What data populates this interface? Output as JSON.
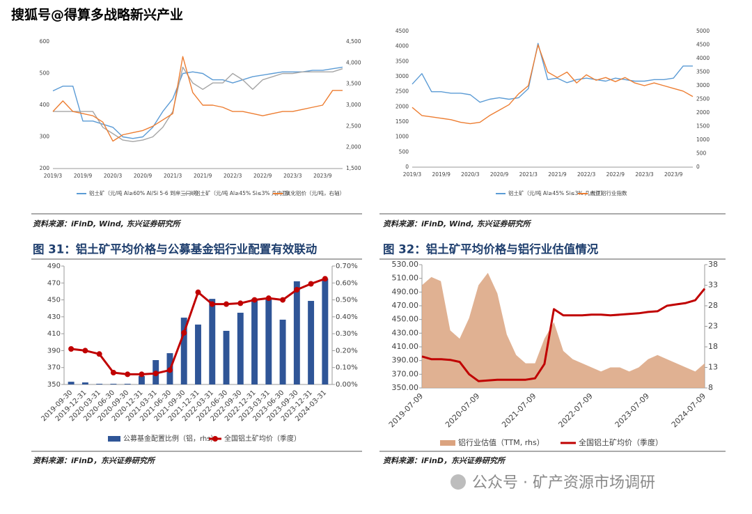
{
  "header": {
    "title": "搜狐号@得算多战略新兴产业"
  },
  "sources": [
    "资料来源：iFinD, Wind, 东兴证券研究所",
    "资料来源：iFinD, Wind, 东兴证券研究所",
    "资料来源：iFinD，东兴证券研究所",
    "资料来源：iFinD，东兴证券研究所"
  ],
  "watermark": "公众号 · 矿产资源市场调研",
  "chart_data": [
    {
      "type": "line",
      "categories": [
        "2019/3",
        null,
        null,
        "2019/9",
        null,
        null,
        "2020/3",
        null,
        null,
        "2020/9",
        null,
        null,
        "2021/3",
        null,
        null,
        "2021/9",
        null,
        null,
        "2022/3",
        null,
        null,
        "2022/9",
        null,
        null,
        "2023/3",
        null,
        null,
        "2023/9",
        null,
        null
      ],
      "ylim": [
        200,
        600
      ],
      "yticks": [
        200,
        300,
        400,
        500,
        600
      ],
      "y2lim": [
        1500,
        4500
      ],
      "y2ticks": [
        {
          "value": 1500,
          "label": "1,500"
        },
        {
          "value": 2000,
          "label": "2,000"
        },
        {
          "value": 2500,
          "label": "2,500"
        },
        {
          "value": 3000,
          "label": "3,000"
        },
        {
          "value": 3500,
          "label": "3,500"
        },
        {
          "value": 4000,
          "label": "4,000"
        },
        {
          "value": 4500,
          "label": "4,500"
        }
      ],
      "series": [
        {
          "name": "铝土矿（元/吨 Al≥60% Al/Si 5-6 到岸三门峡）",
          "color": "#5b9bd5",
          "type": "line",
          "values": [
            445,
            460,
            460,
            350,
            350,
            340,
            330,
            300,
            295,
            300,
            330,
            380,
            420,
            500,
            505,
            500,
            480,
            480,
            470,
            480,
            490,
            495,
            500,
            505,
            505,
            505,
            510,
            510,
            515,
            520
          ]
        },
        {
          "name": "铝土矿（元/吨 Al≥45% Si≤3% 几内亚）",
          "color": "#a5a5a5",
          "type": "line",
          "values": [
            380,
            380,
            380,
            380,
            380,
            330,
            310,
            290,
            285,
            290,
            300,
            330,
            380,
            520,
            470,
            450,
            470,
            470,
            500,
            480,
            450,
            480,
            490,
            500,
            500,
            505,
            505,
            505,
            505,
            515
          ]
        },
        {
          "name": "氧化铝价（元/吨，右轴）",
          "color": "#ed7d31",
          "type": "line",
          "axis": "y2",
          "values": [
            2850,
            3100,
            2850,
            2800,
            2750,
            2600,
            2150,
            2300,
            2350,
            2400,
            2500,
            2650,
            2800,
            4150,
            3300,
            3000,
            3000,
            2950,
            2850,
            2850,
            2800,
            2750,
            2800,
            2850,
            2850,
            2900,
            2950,
            3000,
            3350,
            3350
          ]
        }
      ]
    },
    {
      "type": "line",
      "categories": [
        "2019/3",
        null,
        null,
        "2019/9",
        null,
        null,
        "2020/3",
        null,
        null,
        "2020/9",
        null,
        null,
        "2021/3",
        null,
        null,
        "2021/9",
        null,
        null,
        "2022/3",
        null,
        null,
        "2022/9",
        null,
        null,
        "2023/3",
        null,
        null,
        "2023/9",
        null,
        null
      ],
      "ylim": [
        0,
        4500
      ],
      "yticks": [
        0,
        500,
        1000,
        1500,
        2000,
        2500,
        3000,
        3500,
        4000,
        4500
      ],
      "y2lim": [
        0,
        5000
      ],
      "y2ticks": [
        0,
        500,
        1000,
        1500,
        2000,
        2500,
        3000,
        3500,
        4000,
        4500,
        5000
      ],
      "series": [
        {
          "name": "铝土矿（元/吨 Al≥45% Si≤3% 几内亚）",
          "color": "#5b9bd5",
          "type": "line",
          "values": [
            2750,
            3100,
            2500,
            2500,
            2450,
            2450,
            2400,
            2150,
            2250,
            2300,
            2250,
            2300,
            2600,
            4100,
            2900,
            2950,
            2800,
            2900,
            2950,
            2900,
            2850,
            2950,
            2900,
            2850,
            2850,
            2900,
            2900,
            2950,
            3350,
            3350
          ]
        },
        {
          "name": "长江铝行业指数",
          "color": "#ed7d31",
          "type": "line",
          "axis": "y2",
          "values": [
            2200,
            1900,
            1850,
            1800,
            1750,
            1650,
            1600,
            1650,
            1900,
            2100,
            2300,
            2700,
            3000,
            4500,
            3500,
            3300,
            3500,
            3100,
            3400,
            3200,
            3300,
            3150,
            3300,
            3100,
            3000,
            3100,
            3000,
            2900,
            2800,
            2600
          ]
        }
      ]
    },
    {
      "type": "combo",
      "title": "图 31：铝土矿平均价格与公募基金铝行业配置有效联动",
      "categories": [
        "2019-09-30",
        "2019-12-31",
        "2020-03-31",
        "2020-06-30",
        "2020-09-30",
        "2020-12-31",
        "2021-03-31",
        "2021-06-30",
        "2021-09-30",
        "2021-12-31",
        "2022-03-31",
        "2022-06-30",
        "2022-09-30",
        "2022-12-31",
        "2023-03-31",
        "2023-06-30",
        "2023-09-30",
        "2023-12-31",
        "2024-03-31"
      ],
      "ylim": [
        350,
        490
      ],
      "yticks": [
        350,
        370,
        390,
        410,
        430,
        450,
        470,
        490
      ],
      "y2lim": [
        0,
        0.007
      ],
      "y2ticks": [
        {
          "value": 0,
          "label": "0.00%"
        },
        {
          "value": 0.001,
          "label": "0.10%"
        },
        {
          "value": 0.002,
          "label": "0.20%"
        },
        {
          "value": 0.003,
          "label": "0.30%"
        },
        {
          "value": 0.004,
          "label": "0.40%"
        },
        {
          "value": 0.005,
          "label": "0.50%"
        },
        {
          "value": 0.006,
          "label": "0.60%"
        },
        {
          "value": 0.007,
          "label": "0.70%"
        }
      ],
      "series": [
        {
          "name": "公募基金配置比例（铝，rhs）",
          "color": "#2f5597",
          "type": "bar",
          "axis": "y2",
          "values": [
            0.00016,
            0.00012,
            4e-05,
            4e-05,
            4e-05,
            0.0005,
            0.00144,
            0.00185,
            0.00395,
            0.00354,
            0.00506,
            0.00317,
            0.00424,
            0.00506,
            0.0051,
            0.00383,
            0.0061,
            0.00494,
            0.00626
          ]
        },
        {
          "name": "全国铝土矿均价（季度）",
          "color": "#c00000",
          "type": "line",
          "marker": true,
          "values": [
            392,
            390,
            386,
            364,
            362,
            362,
            363,
            367,
            411,
            459,
            445,
            445,
            446,
            450,
            452,
            450,
            462,
            469,
            475
          ]
        }
      ]
    },
    {
      "type": "combo",
      "title": "图 32：铝土矿平均价格与铝行业估值情况",
      "categories": [
        "2019-07-09",
        null,
        null,
        null,
        null,
        null,
        "2020-07-09",
        null,
        null,
        null,
        null,
        null,
        "2021-07-09",
        null,
        null,
        null,
        null,
        null,
        "2022-07-09",
        null,
        null,
        null,
        null,
        null,
        "2023-07-09",
        null,
        null,
        null,
        null,
        null,
        "2024-07-09"
      ],
      "ylim": [
        350,
        530
      ],
      "yticks": [
        {
          "value": 350,
          "label": "350.00"
        },
        {
          "value": 370,
          "label": "370.00"
        },
        {
          "value": 390,
          "label": "390.00"
        },
        {
          "value": 410,
          "label": "410.00"
        },
        {
          "value": 430,
          "label": "430.00"
        },
        {
          "value": 450,
          "label": "450.00"
        },
        {
          "value": 470,
          "label": "470.00"
        },
        {
          "value": 490,
          "label": "490.00"
        },
        {
          "value": 510,
          "label": "510.00"
        },
        {
          "value": 530,
          "label": "530.00"
        }
      ],
      "y2lim": [
        8,
        38
      ],
      "y2ticks": [
        8,
        13,
        18,
        23,
        28,
        33,
        38
      ],
      "series": [
        {
          "name": "铝行业估值（TTM, rhs）",
          "color": "#dba37f",
          "type": "area",
          "axis": "y2",
          "values": [
            33,
            35,
            34,
            22,
            20,
            25,
            33,
            36,
            31,
            21,
            16,
            14,
            14,
            20,
            24,
            17,
            15,
            14,
            13,
            12,
            13,
            13,
            12,
            13,
            15,
            16,
            15,
            14,
            13,
            12,
            14
          ]
        },
        {
          "name": "全国铝土矿均价（季度）",
          "color": "#c00000",
          "type": "line",
          "values": [
            396,
            392,
            392,
            391,
            388,
            370,
            360,
            361,
            362,
            362,
            362,
            362,
            364,
            385,
            465,
            456,
            456,
            456,
            457,
            457,
            456,
            457,
            458,
            459,
            461,
            462,
            470,
            472,
            474,
            478,
            495
          ]
        }
      ]
    }
  ]
}
